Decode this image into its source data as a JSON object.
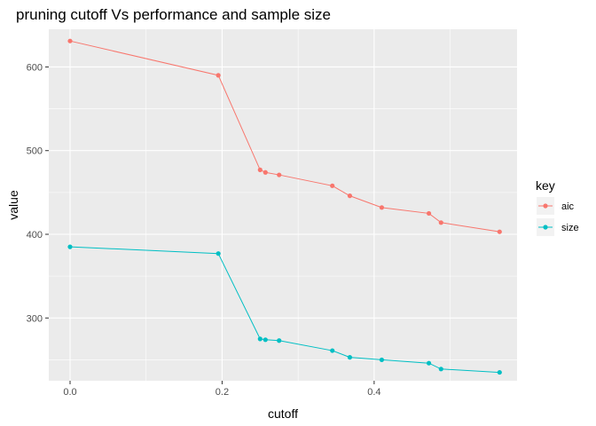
{
  "chart_data": {
    "type": "line",
    "title": "pruning cutoff Vs performance and sample size",
    "xlabel": "cutoff",
    "ylabel": "value",
    "xlim": [
      -0.028,
      0.588
    ],
    "ylim": [
      225,
      645
    ],
    "x_ticks": [
      0.0,
      0.2,
      0.4
    ],
    "x_tick_labels": [
      "0.0",
      "0.2",
      "0.4"
    ],
    "y_ticks": [
      300,
      400,
      500,
      600
    ],
    "y_tick_labels": [
      "300",
      "400",
      "500",
      "600"
    ],
    "grid": true,
    "legend": {
      "title": "key",
      "position": "right"
    },
    "x": [
      0.0,
      0.195,
      0.25,
      0.257,
      0.275,
      0.345,
      0.368,
      0.41,
      0.472,
      0.488,
      0.565
    ],
    "series": [
      {
        "name": "aic",
        "color": "#F8766D",
        "values": [
          631,
          590,
          477,
          474,
          471,
          458,
          446,
          432,
          425,
          414,
          403
        ]
      },
      {
        "name": "size",
        "color": "#00BFC4",
        "values": [
          385,
          377,
          275,
          274,
          273,
          261,
          253,
          250,
          246,
          239,
          235
        ]
      }
    ]
  }
}
